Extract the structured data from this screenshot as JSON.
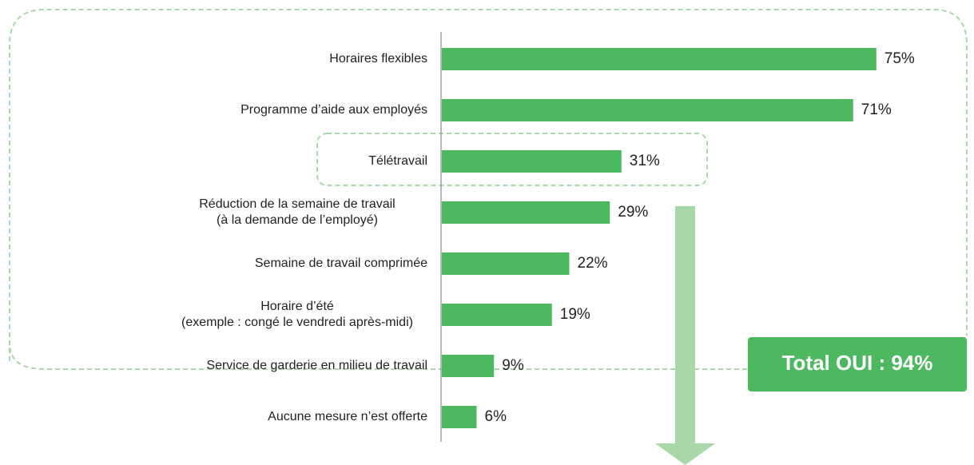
{
  "chart_data": {
    "type": "bar",
    "orientation": "horizontal",
    "categories": [
      "Horaires flexibles",
      "Programme d’aide aux employés",
      "Télétravail",
      "Réduction de la semaine de travail\n(à la demande de l’employé)",
      "Semaine de travail comprimée",
      "Horaire d’été\n(exemple : congé le vendredi après-midi)",
      "Service de garderie en milieu de travail",
      "Aucune mesure n’est offerte"
    ],
    "values": [
      75,
      71,
      31,
      29,
      22,
      19,
      9,
      6
    ],
    "value_labels": [
      "75%",
      "71%",
      "31%",
      "29%",
      "22%",
      "19%",
      "9%",
      "6%"
    ],
    "color": "#4cb960",
    "annotations": [
      "Total OUI : 94%"
    ]
  }
}
